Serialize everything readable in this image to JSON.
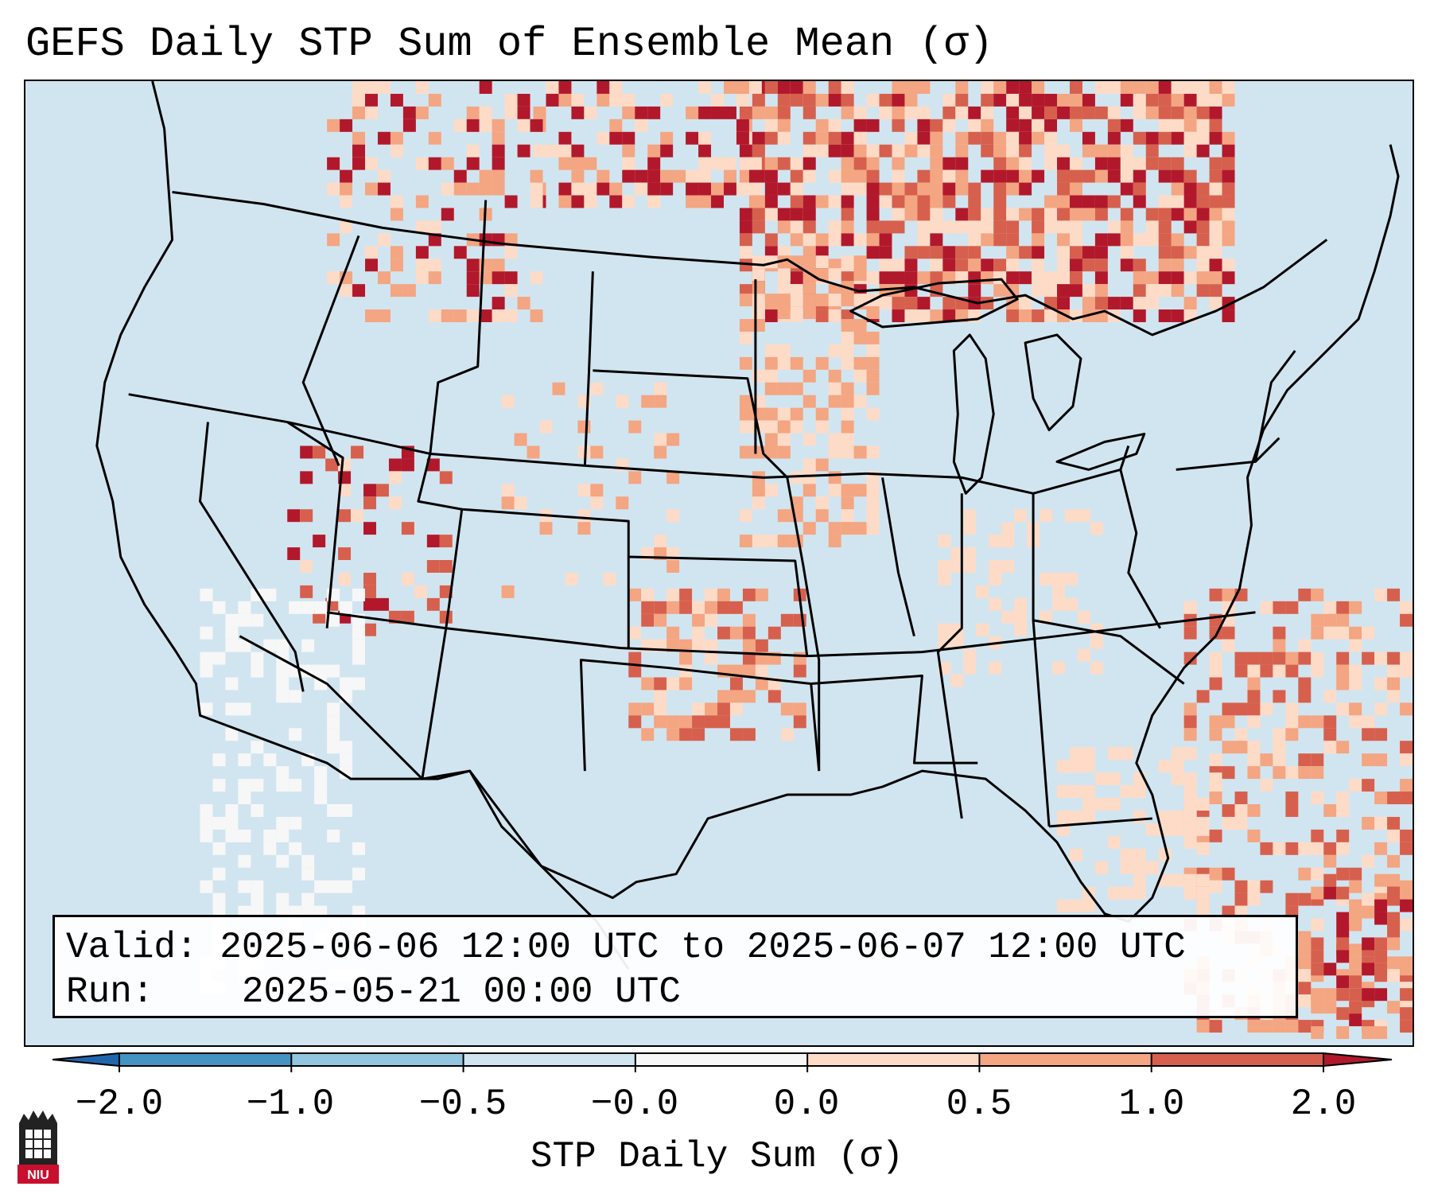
{
  "title": "GEFS Daily STP Sum of Ensemble Mean (σ)",
  "info": {
    "valid_label": "Valid:",
    "valid_value": "2025-06-06 12:00 UTC to 2025-06-07 12:00 UTC",
    "run_label": "Run:",
    "run_value": "2025-05-21 00:00 UTC"
  },
  "colorbar": {
    "label": "STP Daily Sum (σ)",
    "ticks": [
      "−2.0",
      "−1.0",
      "−0.5",
      "−0.0",
      "0.0",
      "0.5",
      "1.0",
      "2.0"
    ],
    "colors": [
      "#4393c3",
      "#92c5de",
      "#d1e5f0",
      "#f7f7f7",
      "#fddbc7",
      "#f4a582",
      "#d6604d",
      "#b2182b"
    ],
    "extend": "both"
  },
  "logo": {
    "text": "NIU"
  },
  "map": {
    "projection": "lambert-conformal",
    "region": "CONUS",
    "background_color": "#d1e5f0",
    "boundaries": [
      "country",
      "state",
      "coastline"
    ]
  }
}
